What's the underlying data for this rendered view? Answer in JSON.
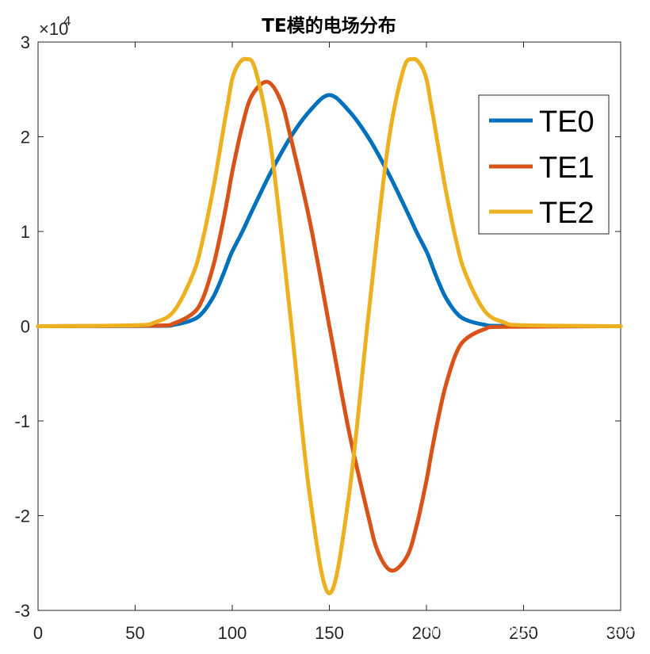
{
  "chart_data": {
    "type": "line",
    "title": "TE模的电场分布",
    "xlim": [
      0,
      300
    ],
    "ylim": [
      -30000,
      30000
    ],
    "xticks": [
      "0",
      "50",
      "100",
      "150",
      "200",
      "250",
      "300"
    ],
    "yticks": [
      "-3",
      "-2",
      "-1",
      "0",
      "1",
      "2",
      "3"
    ],
    "y_exponent_label": "×10",
    "y_exponent_power": "4",
    "legend_position": "top-right",
    "grid": false,
    "series": [
      {
        "name": "TE0",
        "color": "#0072BD",
        "x": [
          0,
          60,
          70,
          80,
          85,
          90,
          93,
          96,
          98,
          100,
          105,
          110,
          120,
          130,
          140,
          150,
          160,
          170,
          180,
          190,
          195,
          200,
          202,
          204,
          207,
          210,
          215,
          220,
          230,
          240,
          300
        ],
        "y": [
          0,
          30,
          150,
          700,
          1500,
          3000,
          4300,
          5800,
          6900,
          7900,
          9900,
          12100,
          16300,
          19950,
          22750,
          24400,
          22750,
          19950,
          16300,
          12100,
          9900,
          7900,
          6900,
          5800,
          4300,
          3000,
          1500,
          700,
          150,
          30,
          0
        ]
      },
      {
        "name": "TE1",
        "color": "#D95319",
        "x": [
          0,
          60,
          70,
          80,
          85,
          90,
          93,
          96,
          98,
          100,
          105,
          110,
          118,
          125,
          130,
          140,
          150,
          160,
          170,
          175,
          182,
          190,
          195,
          200,
          202,
          204,
          207,
          210,
          215,
          220,
          230,
          240,
          300
        ],
        "y": [
          0,
          60,
          300,
          1400,
          3000,
          6200,
          8800,
          11800,
          14000,
          16300,
          21000,
          24300,
          25800,
          23800,
          20000,
          11000,
          0,
          -11000,
          -20000,
          -23800,
          -25800,
          -24300,
          -21000,
          -16300,
          -14000,
          -11800,
          -8800,
          -6200,
          -3000,
          -1400,
          -300,
          -60,
          0
        ]
      },
      {
        "name": "TE2",
        "color": "#EDB120",
        "x": [
          0,
          50,
          60,
          70,
          80,
          85,
          90,
          93,
          96,
          98,
          100,
          103,
          107,
          112,
          120,
          130,
          140,
          150,
          160,
          170,
          180,
          188,
          193,
          197,
          200,
          202,
          204,
          207,
          210,
          215,
          220,
          230,
          240,
          250,
          300
        ],
        "y": [
          0,
          100,
          400,
          1600,
          5600,
          9300,
          14300,
          17800,
          21500,
          23800,
          26100,
          27600,
          28200,
          27000,
          18800,
          900,
          -18000,
          -28200,
          -18000,
          900,
          18800,
          27000,
          28200,
          27600,
          26100,
          23800,
          21500,
          17800,
          14300,
          9300,
          5600,
          1600,
          400,
          100,
          0
        ]
      }
    ]
  },
  "watermark": "知乎 @Fangsu Cao马浩然"
}
